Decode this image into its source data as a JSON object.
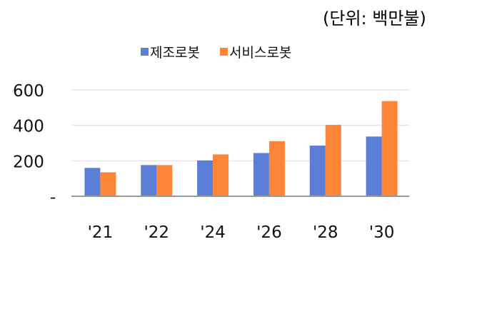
{
  "chart_data": {
    "type": "bar",
    "unit_label": "(단위:  백만불)",
    "categories": [
      "'21",
      "'22",
      "'24",
      "'26",
      "'28",
      "'30"
    ],
    "series": [
      {
        "name": "제조로봇",
        "color": "#5b7fd6",
        "values": [
          160,
          176,
          202,
          244,
          286,
          337
        ]
      },
      {
        "name": "서비스로봇",
        "color": "#fd8537",
        "values": [
          135,
          176,
          236,
          311,
          403,
          537
        ]
      }
    ],
    "yticks": [
      {
        "value": 0,
        "label": "-"
      },
      {
        "value": 200,
        "label": "200"
      },
      {
        "value": 400,
        "label": "400"
      },
      {
        "value": 600,
        "label": "600"
      }
    ],
    "ylim": [
      0,
      600
    ],
    "grid": true,
    "legend": "top-center"
  }
}
